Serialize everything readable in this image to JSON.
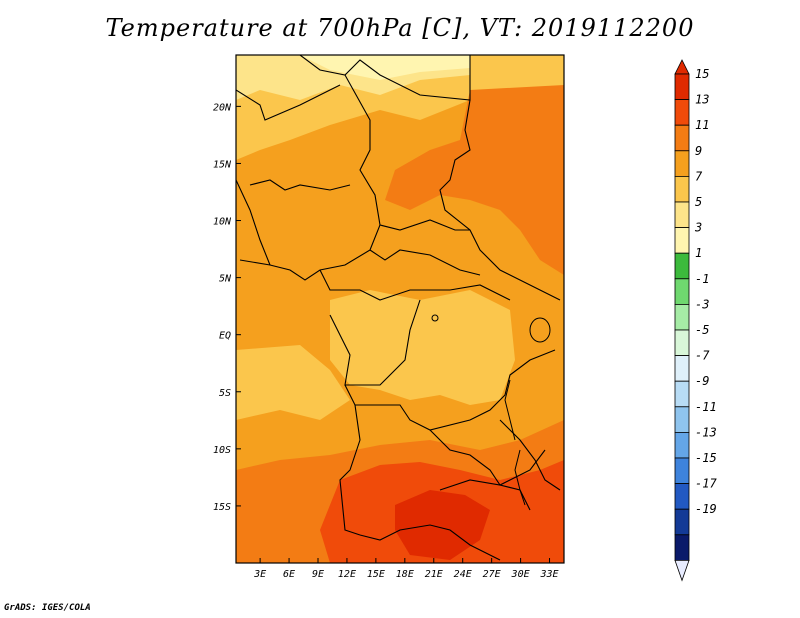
{
  "chart_data": {
    "type": "heatmap",
    "title": "Temperature at 700hPa [C], VT: 2019112200",
    "x_ticks": [
      "3E",
      "6E",
      "9E",
      "12E",
      "15E",
      "18E",
      "21E",
      "24E",
      "27E",
      "30E",
      "33E"
    ],
    "y_ticks": [
      "20N",
      "15N",
      "10N",
      "5N",
      "EQ",
      "5S",
      "10S",
      "15S"
    ],
    "xlim": [
      0.5,
      34.5
    ],
    "ylim": [
      -20,
      24.5
    ],
    "colorbar": {
      "labels": [
        "15",
        "13",
        "11",
        "9",
        "7",
        "5",
        "3",
        "1",
        "-1",
        "-3",
        "-5",
        "-7",
        "-9",
        "-11",
        "-13",
        "-15",
        "-17",
        "-19"
      ],
      "colors": [
        "#e02a00",
        "#f04b0a",
        "#f37c14",
        "#f5a01e",
        "#fbc64c",
        "#fde48a",
        "#fff5b0",
        "#3cba3c",
        "#6fd86f",
        "#a6eca6",
        "#d9f7d9",
        "#dff0fa",
        "#b8dcf5",
        "#8fc4ee",
        "#64a6e8",
        "#3e83dc",
        "#2259c2",
        "#133a96",
        "#0a1a6a"
      ],
      "under_color": "#e8ecff",
      "over_color": "#e02a00"
    },
    "grid": false
  },
  "credit": "GrADS: IGES/COLA"
}
